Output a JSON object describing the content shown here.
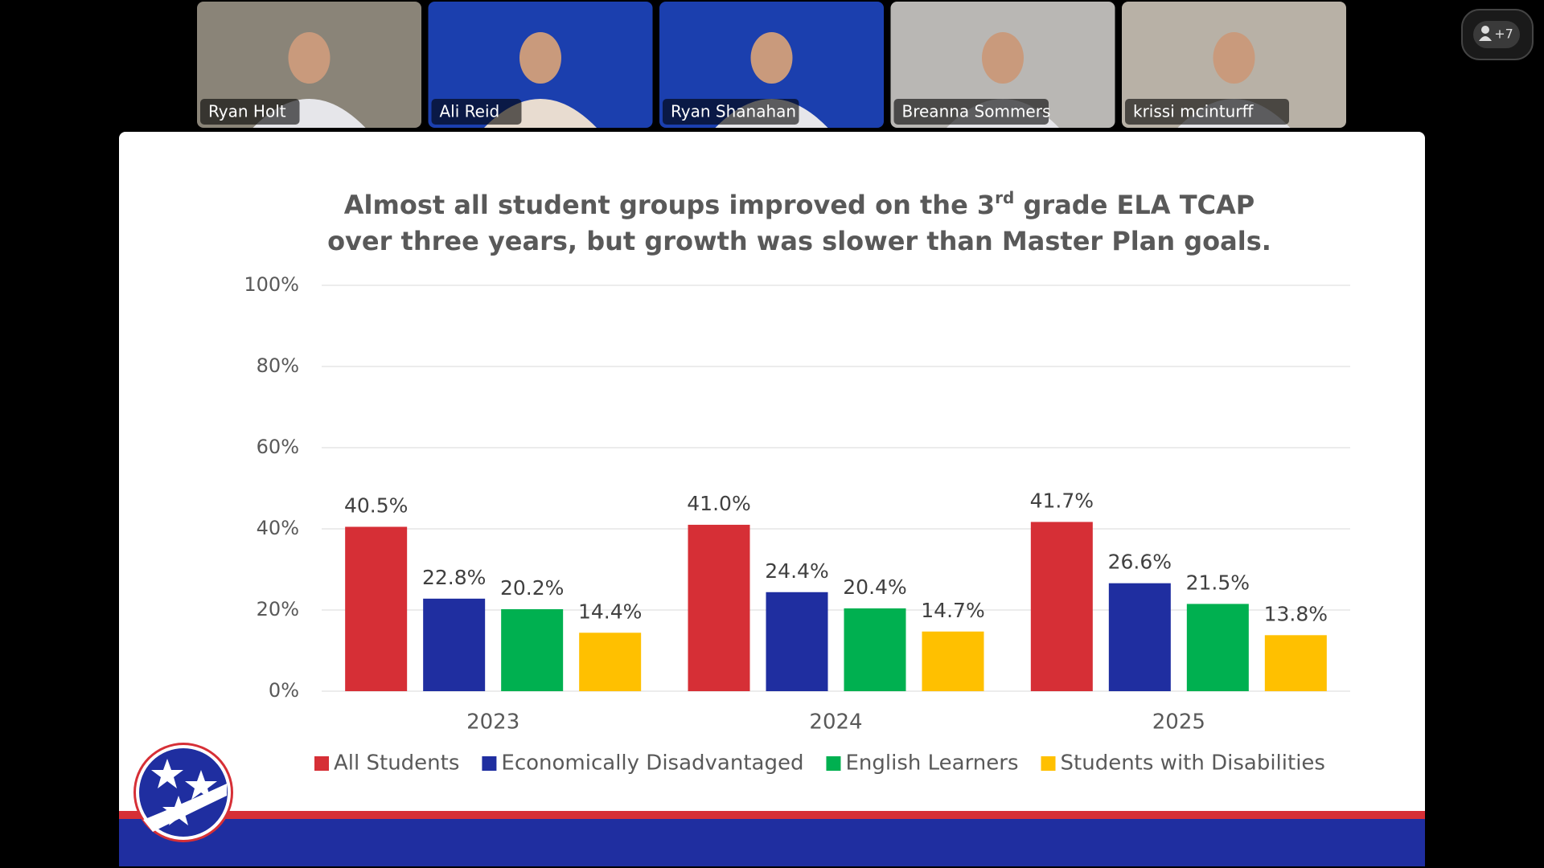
{
  "participants": [
    "Ryan Holt",
    "Ali Reid",
    "Ryan Shanahan",
    "Breanna Sommers",
    "krissi mcinturff"
  ],
  "more_participants": "+7",
  "chart_data": {
    "type": "bar",
    "title": [
      "Almost all student groups improved on the 3",
      "rd",
      " grade ELA TCAP",
      "over three years, but growth was slower than Master Plan goals."
    ],
    "categories": [
      "2023",
      "2024",
      "2025"
    ],
    "series": [
      {
        "name": "All Students",
        "color": "#d62f36",
        "values": [
          40.5,
          41.0,
          41.7
        ],
        "value_labels": [
          "40.5%",
          "41.0%",
          "41.7%"
        ]
      },
      {
        "name": "Economically Disadvantaged",
        "color": "#1f2ea0",
        "values": [
          22.8,
          24.4,
          26.6
        ],
        "value_labels": [
          "22.8%",
          "24.4%",
          "26.6%"
        ]
      },
      {
        "name": "English Learners",
        "color": "#00b050",
        "values": [
          20.2,
          20.4,
          21.5
        ],
        "value_labels": [
          "20.2%",
          "20.4%",
          "21.5%"
        ]
      },
      {
        "name": "Students with Disabilities",
        "color": "#ffc000",
        "values": [
          14.4,
          14.7,
          13.8
        ],
        "value_labels": [
          "14.4%",
          "14.7%",
          "13.8%"
        ]
      }
    ],
    "ylim": [
      0,
      100
    ],
    "yticks": [
      {
        "value": 0,
        "label": "0%"
      },
      {
        "value": 20,
        "label": "20%"
      },
      {
        "value": 40,
        "label": "40%"
      },
      {
        "value": 60,
        "label": "60%"
      },
      {
        "value": 80,
        "label": "80%"
      },
      {
        "value": 100,
        "label": "100%"
      }
    ],
    "grid": true,
    "legend": "bottom"
  }
}
